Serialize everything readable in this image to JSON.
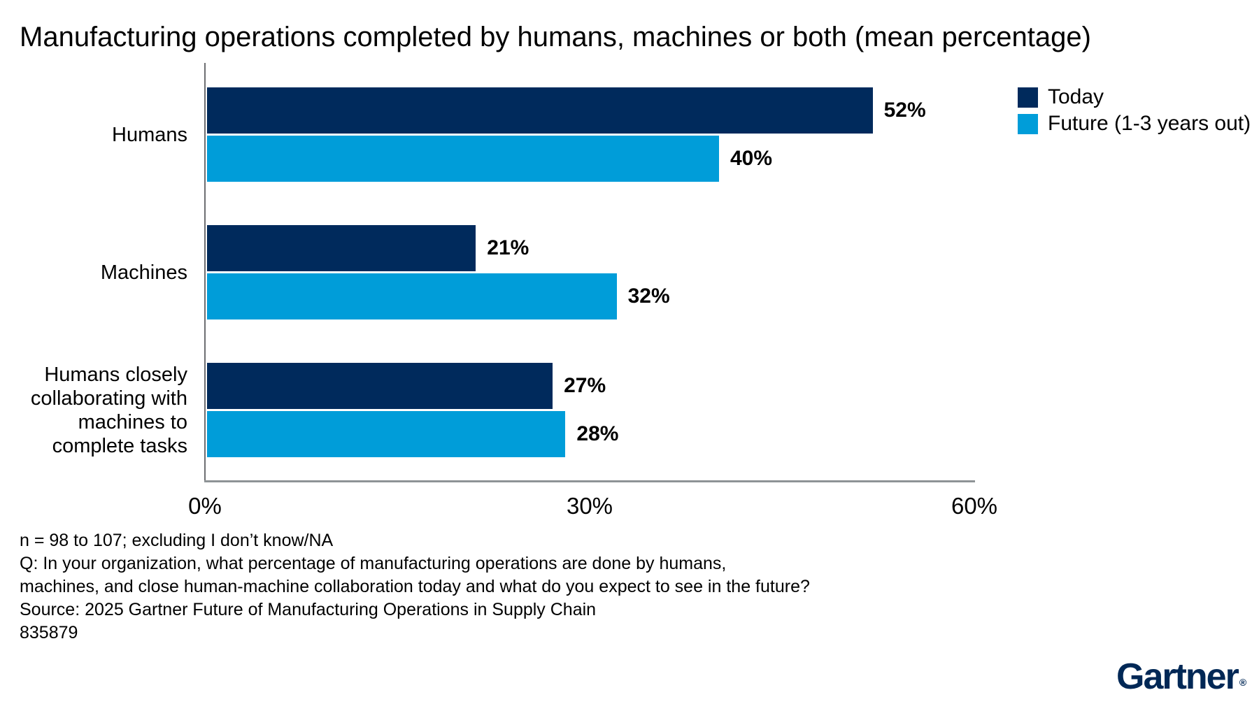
{
  "title": "Manufacturing operations completed by humans, machines or both (mean percentage)",
  "chart_data": {
    "type": "bar",
    "orientation": "horizontal",
    "title": "Manufacturing operations completed by humans, machines or both (mean percentage)",
    "categories": [
      "Humans",
      "Machines",
      "Humans closely collaborating with machines to complete tasks"
    ],
    "category_label_lines": [
      [
        "Humans"
      ],
      [
        "Machines"
      ],
      [
        "Humans closely",
        "collaborating with",
        "machines to",
        "complete tasks"
      ]
    ],
    "series": [
      {
        "name": "Today",
        "color": "#002A5C",
        "values": [
          52,
          21,
          27
        ],
        "data_labels": [
          "52%",
          "21%",
          "27%"
        ]
      },
      {
        "name": "Future (1-3 years out)",
        "color": "#009DD9",
        "values": [
          40,
          32,
          28
        ],
        "data_labels": [
          "40%",
          "32%",
          "28%"
        ]
      }
    ],
    "xlabel": "",
    "ylabel": "",
    "xlim": [
      0,
      60
    ],
    "x_ticks": [
      {
        "label": "0%",
        "value": 0
      },
      {
        "label": "30%",
        "value": 30
      },
      {
        "label": "60%",
        "value": 60
      }
    ],
    "grid": false,
    "legend_position": "top-right",
    "axis_line_color": "#6D6E71",
    "baseline_color": "#8E9396"
  },
  "footnotes": [
    "n = 98 to 107; excluding I don’t know/NA",
    "Q: In your organization, what percentage of manufacturing operations are done by humans,",
    "machines, and close human-machine collaboration today and what do you expect to see in the future?",
    "Source: 2025 Gartner Future of Manufacturing Operations in Supply Chain",
    "835879"
  ],
  "logo": {
    "text": "Gartner",
    "registered_mark": "®",
    "color": "#002856"
  }
}
